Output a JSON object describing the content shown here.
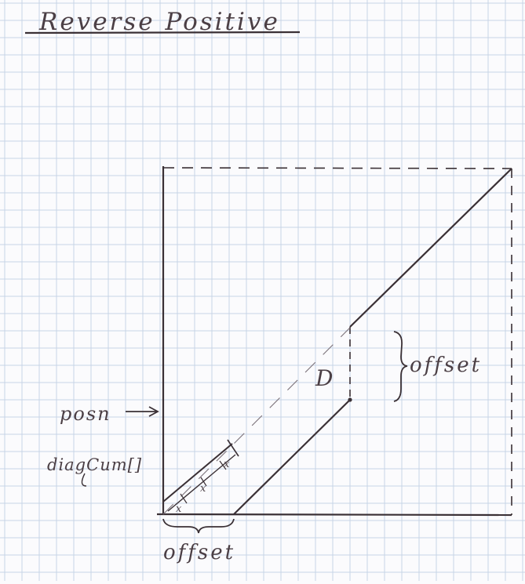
{
  "title": "Reverse Positive",
  "labels": {
    "offset_right": "offset",
    "offset_bottom": "offset",
    "posn": "posn",
    "diagcum": "diagCum[]",
    "d": "D",
    "x_marks": [
      "x",
      "x",
      "x"
    ]
  },
  "colors": {
    "ink": "#3a3035",
    "grid": "#c7d4e6",
    "paper": "#fbfbfd"
  }
}
